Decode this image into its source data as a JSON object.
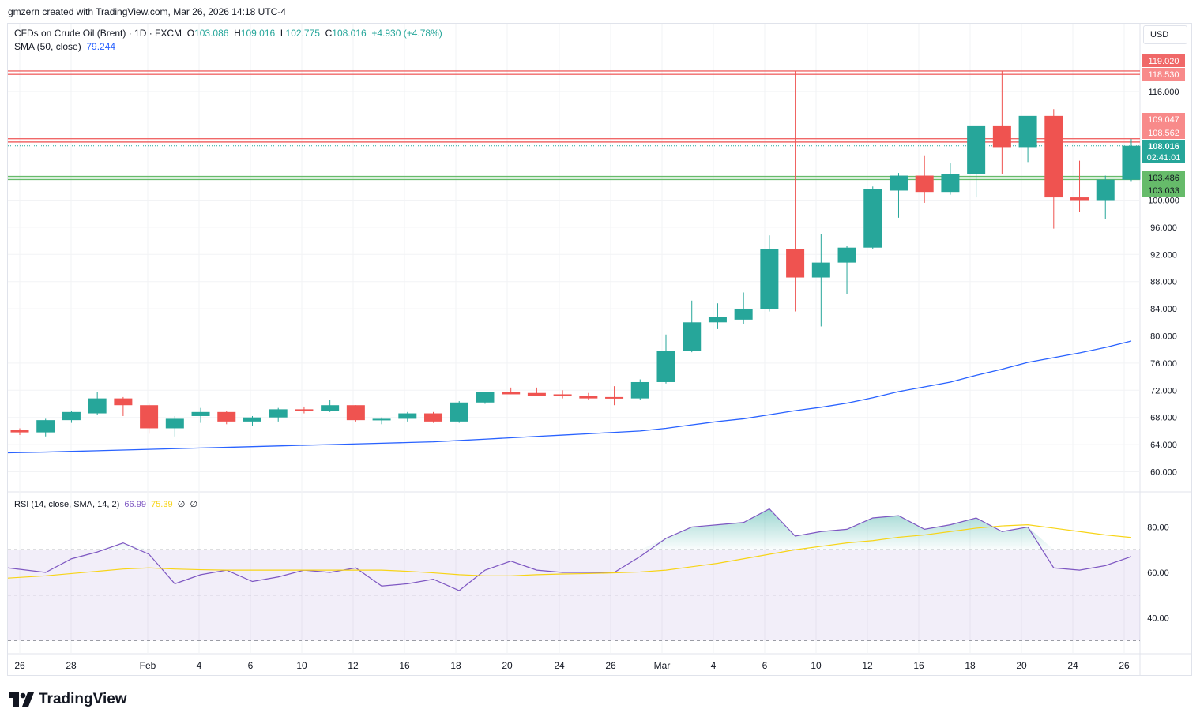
{
  "caption": "gmzern created with TradingView.com, Mar 26, 2026 14:18 UTC-4",
  "brand": {
    "name": "TradingView",
    "icon": "tradingview-logo-icon"
  },
  "legend": {
    "symbol": "CFDs on Crude Oil (Brent) · 1D · FXCM",
    "o_label": "O",
    "o": "103.086",
    "h_label": "H",
    "h": "109.016",
    "l_label": "L",
    "l": "102.775",
    "c_label": "C",
    "c": "108.016",
    "change": "+4.930 (+4.78%)",
    "sma_label": "SMA (50, close)",
    "sma_value": "79.244",
    "rsi_label": "RSI (14, close, SMA, 14, 2)",
    "rsi_value": "66.99",
    "rsi_ma_value": "75.39",
    "rsi_extra1": "∅",
    "rsi_extra2": "∅"
  },
  "currency": "USD",
  "colors": {
    "up": "#26a69a",
    "down": "#ef5350",
    "sma": "#2962ff",
    "rsi": "#7e57c2",
    "rsi_ma": "#f7d417",
    "resistance": "#f06868",
    "support": "#66bb6a"
  },
  "chart_data": [
    {
      "type": "candlestick",
      "title": "CFDs on Crude Oil (Brent) · 1D · FXCM",
      "x": [
        "Jan 26",
        "Jan 27",
        "Jan 28",
        "Jan 29",
        "Jan 30",
        "Feb 2",
        "Feb 3",
        "Feb 4",
        "Feb 5",
        "Feb 6",
        "Feb 9",
        "Feb 10",
        "Feb 11",
        "Feb 12",
        "Feb 13",
        "Feb 16",
        "Feb 17",
        "Feb 18",
        "Feb 19",
        "Feb 20",
        "Feb 23",
        "Feb 24",
        "Feb 25",
        "Feb 26",
        "Feb 27",
        "Mar 2",
        "Mar 3",
        "Mar 4",
        "Mar 5",
        "Mar 6",
        "Mar 9",
        "Mar 10",
        "Mar 11",
        "Mar 12",
        "Mar 13",
        "Mar 16",
        "Mar 17",
        "Mar 18",
        "Mar 19",
        "Mar 20",
        "Mar 23",
        "Mar 24",
        "Mar 25",
        "Mar 26"
      ],
      "ohlc": [
        [
          66.2,
          66.4,
          65.4,
          65.8
        ],
        [
          65.8,
          67.8,
          65.2,
          67.6
        ],
        [
          67.6,
          69.0,
          67.2,
          68.8
        ],
        [
          68.6,
          71.8,
          68.4,
          70.8
        ],
        [
          70.8,
          71.0,
          68.2,
          69.8
        ],
        [
          69.8,
          70.0,
          65.6,
          66.4
        ],
        [
          66.4,
          68.2,
          65.2,
          67.8
        ],
        [
          68.2,
          69.4,
          67.2,
          68.8
        ],
        [
          68.8,
          69.0,
          67.0,
          67.4
        ],
        [
          67.4,
          68.2,
          66.8,
          68.0
        ],
        [
          68.0,
          69.4,
          67.4,
          69.2
        ],
        [
          69.2,
          69.6,
          68.6,
          69.0
        ],
        [
          69.0,
          70.6,
          68.8,
          69.8
        ],
        [
          69.8,
          69.8,
          67.4,
          67.6
        ],
        [
          67.6,
          68.0,
          67.0,
          67.8
        ],
        [
          67.8,
          68.8,
          67.4,
          68.6
        ],
        [
          68.6,
          68.8,
          67.2,
          67.4
        ],
        [
          67.4,
          70.4,
          67.2,
          70.2
        ],
        [
          70.2,
          71.8,
          70.0,
          71.8
        ],
        [
          71.8,
          72.4,
          71.4,
          71.4
        ],
        [
          71.6,
          72.4,
          71.2,
          71.2
        ],
        [
          71.4,
          72.0,
          70.8,
          71.2
        ],
        [
          71.2,
          71.6,
          70.6,
          70.8
        ],
        [
          71.0,
          72.6,
          69.8,
          70.8
        ],
        [
          70.8,
          73.6,
          70.6,
          73.2
        ],
        [
          73.2,
          80.2,
          73.0,
          77.8
        ],
        [
          77.8,
          85.2,
          77.6,
          82.0
        ],
        [
          82.0,
          84.8,
          81.0,
          82.8
        ],
        [
          82.4,
          86.4,
          81.8,
          84.0
        ],
        [
          84.0,
          94.8,
          83.6,
          92.8
        ],
        [
          92.8,
          119.0,
          83.6,
          88.6
        ],
        [
          88.6,
          95.0,
          81.4,
          90.8
        ],
        [
          90.8,
          93.2,
          86.2,
          93.0
        ],
        [
          93.0,
          102.0,
          92.8,
          101.6
        ],
        [
          101.4,
          104.0,
          97.4,
          103.6
        ],
        [
          103.6,
          106.6,
          99.6,
          101.2
        ],
        [
          101.2,
          105.4,
          100.8,
          103.8
        ],
        [
          103.8,
          110.6,
          100.4,
          111.0
        ],
        [
          111.0,
          119.0,
          103.8,
          107.8
        ],
        [
          107.8,
          112.0,
          105.6,
          112.4
        ],
        [
          112.4,
          113.4,
          95.8,
          100.4
        ],
        [
          100.4,
          105.8,
          98.2,
          100.0
        ],
        [
          100.0,
          103.6,
          97.2,
          103.0
        ],
        [
          103.0,
          109.0,
          102.8,
          108.0
        ]
      ],
      "sma": {
        "name": "SMA (50, close)",
        "last": 79.244,
        "values": [
          62.8,
          62.9,
          63.0,
          63.1,
          63.2,
          63.3,
          63.4,
          63.5,
          63.6,
          63.7,
          63.8,
          63.9,
          64.0,
          64.1,
          64.2,
          64.3,
          64.4,
          64.6,
          64.8,
          65.0,
          65.2,
          65.4,
          65.6,
          65.8,
          66.0,
          66.4,
          66.9,
          67.4,
          67.8,
          68.4,
          69.0,
          69.5,
          70.1,
          70.9,
          71.8,
          72.5,
          73.2,
          74.2,
          75.1,
          76.1,
          76.8,
          77.5,
          78.3,
          79.244
        ]
      },
      "horizontal_levels": [
        119.02,
        118.53,
        109.047,
        108.562,
        103.486,
        103.033
      ],
      "price_labels": [
        "119.020",
        "118.530",
        "109.047",
        "108.562",
        "108.016",
        "02:41:01",
        "103.486",
        "103.033"
      ],
      "y_ticks": [
        "116.000",
        "100.000",
        "96.000",
        "92.000",
        "88.000",
        "84.000",
        "80.000",
        "76.000",
        "72.000",
        "68.000",
        "64.000",
        "60.000"
      ],
      "x_tick_labels": [
        "26",
        "28",
        "Feb",
        "4",
        "6",
        "10",
        "12",
        "16",
        "18",
        "20",
        "24",
        "26",
        "Mar",
        "4",
        "6",
        "10",
        "12",
        "16",
        "18",
        "20",
        "24",
        "26"
      ],
      "y_scale": "linear"
    },
    {
      "type": "line",
      "title": "RSI (14, close, SMA, 14, 2)",
      "series": [
        {
          "name": "RSI",
          "values": [
            62,
            60,
            66,
            69,
            73,
            68,
            55,
            59,
            61,
            56,
            58,
            61,
            60,
            62,
            54,
            55,
            57,
            52,
            61,
            65,
            61,
            60,
            60,
            60,
            67,
            75,
            80,
            81,
            82,
            88,
            76,
            78,
            79,
            84,
            85,
            79,
            81,
            84,
            78,
            80,
            62,
            61,
            63,
            66.99
          ]
        },
        {
          "name": "RSI SMA",
          "values": [
            57.5,
            58.5,
            59.5,
            60.5,
            61.5,
            62.0,
            61.5,
            61.2,
            61.0,
            61.0,
            61.0,
            61.0,
            61.0,
            61.0,
            61.0,
            60.5,
            59.8,
            59.0,
            58.5,
            58.5,
            59.0,
            59.3,
            59.5,
            59.8,
            60.2,
            61.0,
            62.5,
            64.0,
            66.0,
            68.0,
            70.0,
            71.5,
            73.0,
            74.0,
            75.5,
            76.5,
            78.0,
            79.5,
            80.5,
            81.0,
            79.5,
            78.0,
            76.5,
            75.39
          ]
        }
      ],
      "ylim": [
        27,
        95
      ],
      "y_ticks": [
        "80.00",
        "60.00",
        "40.00"
      ],
      "bands": [
        70,
        50,
        30
      ]
    }
  ]
}
